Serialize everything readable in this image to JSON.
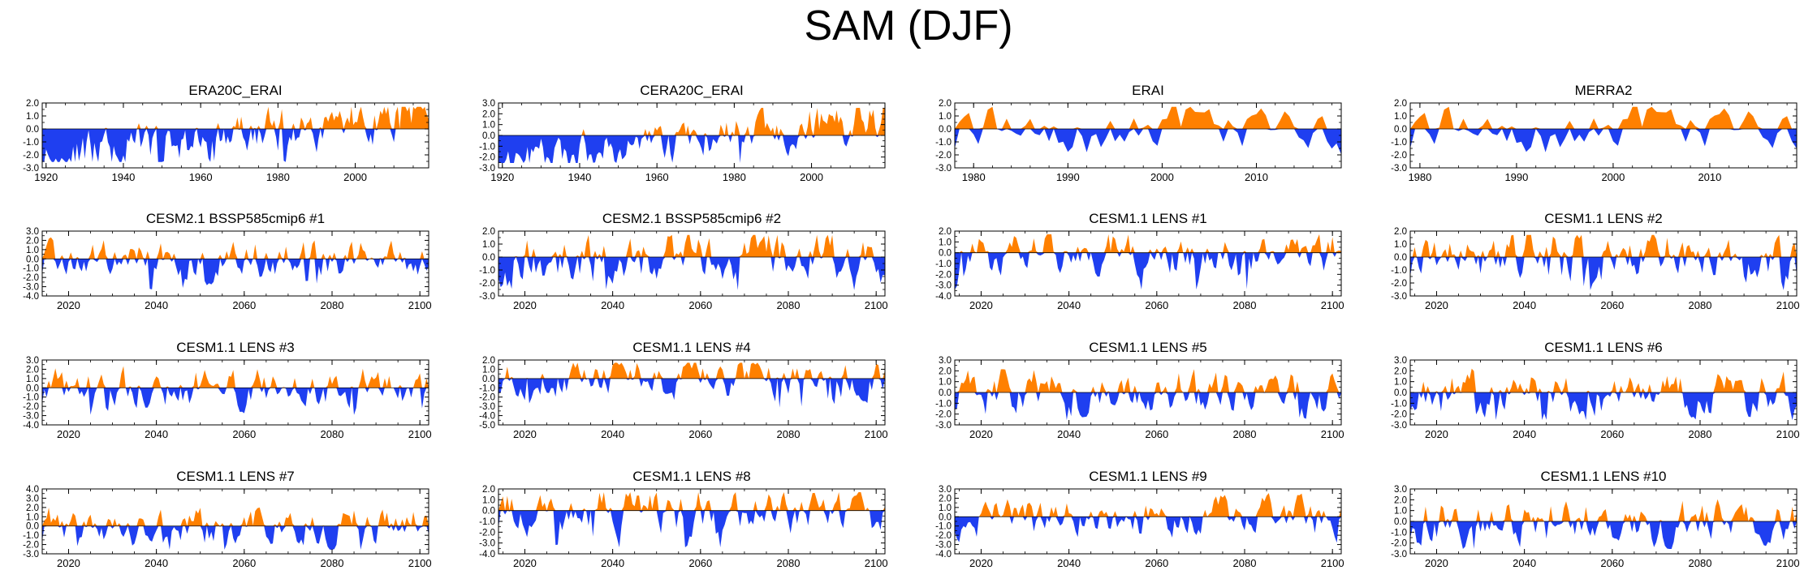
{
  "title": "SAM (DJF)",
  "colors": {
    "positive": "#ff8000",
    "negative": "#1f3ff0",
    "axis": "#000000"
  },
  "chart_data": [
    {
      "type": "area",
      "title": "ERA20C_ERAI",
      "xlim": [
        1919,
        2019
      ],
      "ylim": [
        -3.0,
        2.0
      ],
      "xticks": [
        1920,
        1940,
        1960,
        1980,
        2000
      ],
      "xtick_labels": [
        "1920",
        "1940",
        "1960",
        "1980",
        "2000"
      ],
      "yticks": [
        2.0,
        1.0,
        0.0,
        -1.0,
        -2.0,
        -3.0
      ],
      "ytick_labels": [
        "2.0",
        "1.0",
        "0.0",
        "-1.0",
        "-2.0",
        "-3.0"
      ],
      "seed": 11,
      "amp": 1.4,
      "trend": true
    },
    {
      "type": "area",
      "title": "CERA20C_ERAI",
      "xlim": [
        1919,
        2019
      ],
      "ylim": [
        -3.0,
        3.0
      ],
      "xticks": [
        1920,
        1940,
        1960,
        1980,
        2000
      ],
      "xtick_labels": [
        "1920",
        "1940",
        "1960",
        "1980",
        "2000"
      ],
      "yticks": [
        3.0,
        2.0,
        1.0,
        0.0,
        -1.0,
        -2.0,
        -3.0
      ],
      "ytick_labels": [
        "3.0",
        "2.0",
        "1.0",
        "0.0",
        "-1.0",
        "-2.0",
        "-3.0"
      ],
      "seed": 23,
      "amp": 1.4,
      "trend": true
    },
    {
      "type": "area",
      "title": "ERAI",
      "xlim": [
        1978,
        2019
      ],
      "ylim": [
        -3.0,
        2.0
      ],
      "xticks": [
        1980,
        1990,
        2000,
        2010
      ],
      "xtick_labels": [
        "1980",
        "1990",
        "2000",
        "2010"
      ],
      "yticks": [
        2.0,
        1.0,
        0.0,
        -1.0,
        -2.0,
        -3.0
      ],
      "ytick_labels": [
        "2.0",
        "1.0",
        "0.0",
        "-1.0",
        "-2.0",
        "-3.0"
      ],
      "seed": 37,
      "amp": 1.5,
      "trend": false
    },
    {
      "type": "area",
      "title": "MERRA2",
      "xlim": [
        1979,
        2019
      ],
      "ylim": [
        -3.0,
        2.0
      ],
      "xticks": [
        1980,
        1990,
        2000,
        2010
      ],
      "xtick_labels": [
        "1980",
        "1990",
        "2000",
        "2010"
      ],
      "yticks": [
        2.0,
        1.0,
        0.0,
        -1.0,
        -2.0,
        -3.0
      ],
      "ytick_labels": [
        "2.0",
        "1.0",
        "0.0",
        "-1.0",
        "-2.0",
        "-3.0"
      ],
      "seed": 37,
      "amp": 1.5,
      "trend": false
    },
    {
      "type": "area",
      "title": "CESM2.1 BSSP585cmip6 #1",
      "xlim": [
        2014,
        2102
      ],
      "ylim": [
        -4.0,
        3.0
      ],
      "xticks": [
        2020,
        2040,
        2060,
        2080,
        2100
      ],
      "xtick_labels": [
        "2020",
        "2040",
        "2060",
        "2080",
        "2100"
      ],
      "yticks": [
        3.0,
        2.0,
        1.0,
        0.0,
        -1.0,
        -2.0,
        -3.0,
        -4.0
      ],
      "ytick_labels": [
        "3.0",
        "2.0",
        "1.0",
        "0.0",
        "-1.0",
        "-2.0",
        "-3.0",
        "-4.0"
      ],
      "seed": 41,
      "amp": 1.6,
      "trend": false
    },
    {
      "type": "area",
      "title": "CESM2.1 BSSP585cmip6 #2",
      "xlim": [
        2014,
        2102
      ],
      "ylim": [
        -3.0,
        2.0
      ],
      "xticks": [
        2020,
        2040,
        2060,
        2080,
        2100
      ],
      "xtick_labels": [
        "2020",
        "2040",
        "2060",
        "2080",
        "2100"
      ],
      "yticks": [
        2.0,
        1.0,
        0.0,
        -1.0,
        -2.0,
        -3.0
      ],
      "ytick_labels": [
        "2.0",
        "1.0",
        "0.0",
        "-1.0",
        "-2.0",
        "-3.0"
      ],
      "seed": 53,
      "amp": 1.6,
      "trend": false
    },
    {
      "type": "area",
      "title": "CESM1.1 LENS #1",
      "xlim": [
        2014,
        2102
      ],
      "ylim": [
        -4.0,
        2.0
      ],
      "xticks": [
        2020,
        2040,
        2060,
        2080,
        2100
      ],
      "xtick_labels": [
        "2020",
        "2040",
        "2060",
        "2080",
        "2100"
      ],
      "yticks": [
        2.0,
        1.0,
        0.0,
        -1.0,
        -2.0,
        -3.0,
        -4.0
      ],
      "ytick_labels": [
        "2.0",
        "1.0",
        "0.0",
        "-1.0",
        "-2.0",
        "-3.0",
        "-4.0"
      ],
      "seed": 61,
      "amp": 1.5,
      "trend": false
    },
    {
      "type": "area",
      "title": "CESM1.1 LENS #2",
      "xlim": [
        2014,
        2102
      ],
      "ylim": [
        -3.0,
        2.0
      ],
      "xticks": [
        2020,
        2040,
        2060,
        2080,
        2100
      ],
      "xtick_labels": [
        "2020",
        "2040",
        "2060",
        "2080",
        "2100"
      ],
      "yticks": [
        2.0,
        1.0,
        0.0,
        -1.0,
        -2.0,
        -3.0
      ],
      "ytick_labels": [
        "2.0",
        "1.0",
        "0.0",
        "-1.0",
        "-2.0",
        "-3.0"
      ],
      "seed": 71,
      "amp": 1.5,
      "trend": false
    },
    {
      "type": "area",
      "title": "CESM1.1 LENS #3",
      "xlim": [
        2014,
        2102
      ],
      "ylim": [
        -4.0,
        3.0
      ],
      "xticks": [
        2020,
        2040,
        2060,
        2080,
        2100
      ],
      "xtick_labels": [
        "2020",
        "2040",
        "2060",
        "2080",
        "2100"
      ],
      "yticks": [
        3.0,
        2.0,
        1.0,
        0.0,
        -1.0,
        -2.0,
        -3.0,
        -4.0
      ],
      "ytick_labels": [
        "3.0",
        "2.0",
        "1.0",
        "0.0",
        "-1.0",
        "-2.0",
        "-3.0",
        "-4.0"
      ],
      "seed": 83,
      "amp": 1.6,
      "trend": false
    },
    {
      "type": "area",
      "title": "CESM1.1 LENS #4",
      "xlim": [
        2014,
        2102
      ],
      "ylim": [
        -5.0,
        2.0
      ],
      "xticks": [
        2020,
        2040,
        2060,
        2080,
        2100
      ],
      "xtick_labels": [
        "2020",
        "2040",
        "2060",
        "2080",
        "2100"
      ],
      "yticks": [
        2.0,
        1.0,
        0.0,
        -1.0,
        -2.0,
        -3.0,
        -4.0,
        -5.0
      ],
      "ytick_labels": [
        "2.0",
        "1.0",
        "0.0",
        "-1.0",
        "-2.0",
        "-3.0",
        "-4.0",
        "-5.0"
      ],
      "seed": 97,
      "amp": 1.6,
      "trend": false
    },
    {
      "type": "area",
      "title": "CESM1.1 LENS #5",
      "xlim": [
        2014,
        2102
      ],
      "ylim": [
        -3.0,
        3.0
      ],
      "xticks": [
        2020,
        2040,
        2060,
        2080,
        2100
      ],
      "xtick_labels": [
        "2020",
        "2040",
        "2060",
        "2080",
        "2100"
      ],
      "yticks": [
        3.0,
        2.0,
        1.0,
        0.0,
        -1.0,
        -2.0,
        -3.0
      ],
      "ytick_labels": [
        "3.0",
        "2.0",
        "1.0",
        "0.0",
        "-1.0",
        "-2.0",
        "-3.0"
      ],
      "seed": 101,
      "amp": 1.6,
      "trend": false
    },
    {
      "type": "area",
      "title": "CESM1.1 LENS #6",
      "xlim": [
        2014,
        2102
      ],
      "ylim": [
        -3.0,
        3.0
      ],
      "xticks": [
        2020,
        2040,
        2060,
        2080,
        2100
      ],
      "xtick_labels": [
        "2020",
        "2040",
        "2060",
        "2080",
        "2100"
      ],
      "yticks": [
        3.0,
        2.0,
        1.0,
        0.0,
        -1.0,
        -2.0,
        -3.0
      ],
      "ytick_labels": [
        "3.0",
        "2.0",
        "1.0",
        "0.0",
        "-1.0",
        "-2.0",
        "-3.0"
      ],
      "seed": 113,
      "amp": 1.6,
      "trend": false
    },
    {
      "type": "area",
      "title": "CESM1.1 LENS #7",
      "xlim": [
        2014,
        2102
      ],
      "ylim": [
        -3.0,
        4.0
      ],
      "xticks": [
        2020,
        2040,
        2060,
        2080,
        2100
      ],
      "xtick_labels": [
        "2020",
        "2040",
        "2060",
        "2080",
        "2100"
      ],
      "yticks": [
        4.0,
        3.0,
        2.0,
        1.0,
        0.0,
        -1.0,
        -2.0,
        -3.0
      ],
      "ytick_labels": [
        "4.0",
        "3.0",
        "2.0",
        "1.0",
        "0.0",
        "-1.0",
        "-2.0",
        "-3.0"
      ],
      "seed": 127,
      "amp": 1.6,
      "trend": false
    },
    {
      "type": "area",
      "title": "CESM1.1 LENS #8",
      "xlim": [
        2014,
        2102
      ],
      "ylim": [
        -4.0,
        2.0
      ],
      "xticks": [
        2020,
        2040,
        2060,
        2080,
        2100
      ],
      "xtick_labels": [
        "2020",
        "2040",
        "2060",
        "2080",
        "2100"
      ],
      "yticks": [
        2.0,
        1.0,
        0.0,
        -1.0,
        -2.0,
        -3.0,
        -4.0
      ],
      "ytick_labels": [
        "2.0",
        "1.0",
        "0.0",
        "-1.0",
        "-2.0",
        "-3.0",
        "-4.0"
      ],
      "seed": 131,
      "amp": 1.6,
      "trend": false
    },
    {
      "type": "area",
      "title": "CESM1.1 LENS #9",
      "xlim": [
        2014,
        2102
      ],
      "ylim": [
        -4.0,
        3.0
      ],
      "xticks": [
        2020,
        2040,
        2060,
        2080,
        2100
      ],
      "xtick_labels": [
        "2020",
        "2040",
        "2060",
        "2080",
        "2100"
      ],
      "yticks": [
        3.0,
        2.0,
        1.0,
        0.0,
        -1.0,
        -2.0,
        -3.0,
        -4.0
      ],
      "ytick_labels": [
        "3.0",
        "2.0",
        "1.0",
        "0.0",
        "-1.0",
        "-2.0",
        "-3.0",
        "-4.0"
      ],
      "seed": 139,
      "amp": 1.6,
      "trend": false
    },
    {
      "type": "area",
      "title": "CESM1.1 LENS #10",
      "xlim": [
        2014,
        2102
      ],
      "ylim": [
        -3.0,
        3.0
      ],
      "xticks": [
        2020,
        2040,
        2060,
        2080,
        2100
      ],
      "xtick_labels": [
        "2020",
        "2040",
        "2060",
        "2080",
        "2100"
      ],
      "yticks": [
        3.0,
        2.0,
        1.0,
        0.0,
        -1.0,
        -2.0,
        -3.0
      ],
      "ytick_labels": [
        "3.0",
        "2.0",
        "1.0",
        "0.0",
        "-1.0",
        "-2.0",
        "-3.0"
      ],
      "seed": 149,
      "amp": 1.6,
      "trend": false
    }
  ]
}
